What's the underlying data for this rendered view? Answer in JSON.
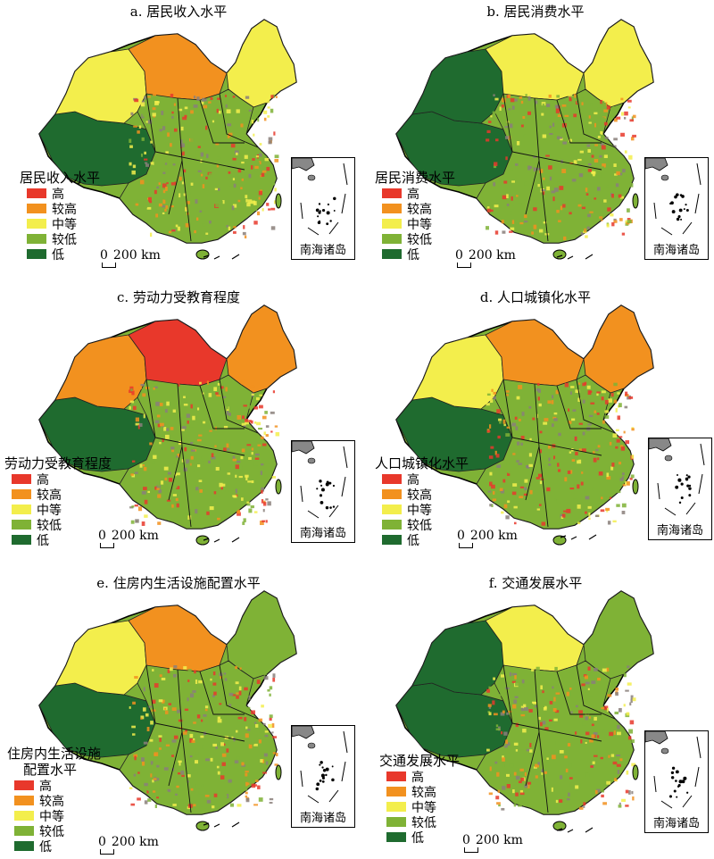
{
  "colors": {
    "high": "#e8382b",
    "mid_high": "#f2911f",
    "medium": "#f3ee4c",
    "mid_low": "#7fb236",
    "low": "#1f6b2f"
  },
  "legend_items": [
    "高",
    "较高",
    "中等",
    "较低",
    "低"
  ],
  "scale_label": "200 km",
  "scale_zero": "0",
  "inset_label": "南海诸岛",
  "panels": [
    {
      "title": "a. 居民收入水平",
      "legend_title": "居民收入水平",
      "legend_title2": ""
    },
    {
      "title": "b. 居民消费水平",
      "legend_title": "居民消费水平",
      "legend_title2": ""
    },
    {
      "title": "c. 劳动力受教育程度",
      "legend_title": "劳动力受教育程度",
      "legend_title2": ""
    },
    {
      "title": "d. 人口城镇化水平",
      "legend_title": "人口城镇化水平",
      "legend_title2": ""
    },
    {
      "title": "e. 住房内生活设施配置水平",
      "legend_title": "住房内生活设施",
      "legend_title2": "配置水平"
    },
    {
      "title": "f. 交通发展水平",
      "legend_title": "交通发展水平",
      "legend_title2": ""
    }
  ]
}
